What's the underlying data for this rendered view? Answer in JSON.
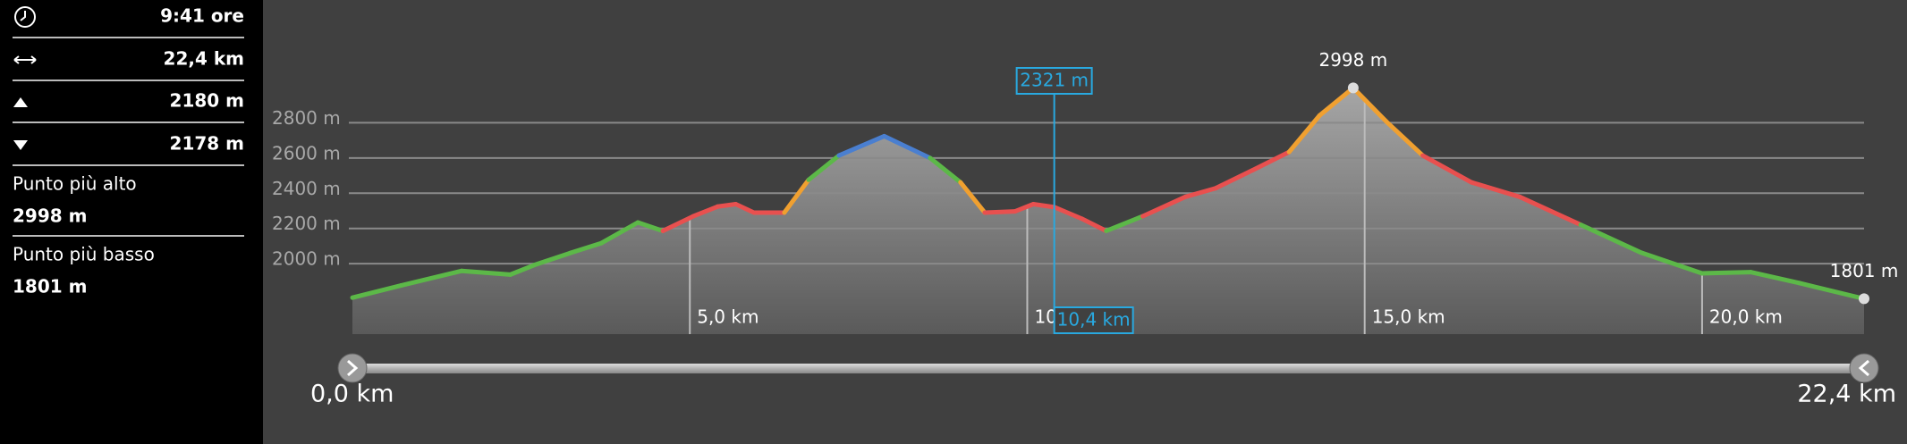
{
  "sidebar": {
    "duration": "9:41 ore",
    "distance": "22,4 km",
    "ascent": "2180 m",
    "descent": "2178 m",
    "highest_label": "Punto più alto",
    "highest_value": "2998 m",
    "lowest_label": "Punto più basso",
    "lowest_value": "1801 m"
  },
  "chart_data": {
    "type": "area",
    "x": [
      0,
      0.72,
      1.62,
      2.34,
      2.7,
      3.24,
      3.69,
      4.23,
      4.6,
      5.05,
      5.41,
      5.68,
      5.95,
      6.4,
      6.76,
      7.21,
      7.88,
      8.56,
      9.01,
      9.37,
      9.82,
      10.09,
      10.4,
      10.81,
      11.17,
      11.71,
      12.34,
      12.79,
      13.34,
      13.88,
      14.33,
      14.83,
      15.32,
      15.86,
      16.58,
      17.3,
      18.2,
      19.1,
      20.0,
      20.72,
      21.44,
      22.4
    ],
    "values": [
      1807,
      1876,
      1959,
      1938,
      1993,
      2062,
      2117,
      2234,
      2186,
      2269,
      2324,
      2338,
      2290,
      2290,
      2476,
      2614,
      2724,
      2600,
      2462,
      2290,
      2297,
      2338,
      2321,
      2255,
      2186,
      2269,
      2379,
      2428,
      2531,
      2634,
      2841,
      2998,
      2807,
      2614,
      2462,
      2379,
      2221,
      2062,
      1945,
      1952,
      1890,
      1801
    ],
    "segment_colors": [
      "#5cb848",
      "#5cb848",
      "#5cb848",
      "#5cb848",
      "#5cb848",
      "#5cb848",
      "#5cb848",
      "#5cb848",
      "#e8504f",
      "#e8504f",
      "#e8504f",
      "#e8504f",
      "#e8504f",
      "#f0a030",
      "#5cb848",
      "#4a7fd0",
      "#4a7fd0",
      "#5cb848",
      "#f0a030",
      "#e8504f",
      "#e8504f",
      "#e8504f",
      "#e8504f",
      "#e8504f",
      "#5cb848",
      "#e8504f",
      "#e8504f",
      "#e8504f",
      "#e8504f",
      "#f0a030",
      "#f0a030",
      "#f0a030",
      "#f0a030",
      "#e8504f",
      "#e8504f",
      "#e8504f",
      "#5cb848",
      "#5cb848",
      "#5cb848",
      "#5cb848",
      "#5cb848"
    ],
    "xlim": [
      0,
      22.4
    ],
    "ylim": [
      1600,
      3000
    ],
    "xticks": [
      {
        "value": 5,
        "label": "5,0 km"
      },
      {
        "value": 10,
        "label": "10,0 km"
      },
      {
        "value": 15,
        "label": "15,0 km"
      },
      {
        "value": 20,
        "label": "20,0 km"
      }
    ],
    "yticks": [
      {
        "value": 2000,
        "label": "2000 m"
      },
      {
        "value": 2200,
        "label": "2200 m"
      },
      {
        "value": 2400,
        "label": "2400 m"
      },
      {
        "value": 2600,
        "label": "2600 m"
      },
      {
        "value": 2800,
        "label": "2800 m"
      }
    ],
    "grid": true,
    "annotations": [
      {
        "text": "2998 m",
        "x": 14.83,
        "value": 2998
      },
      {
        "text": "1801 m",
        "x": 22.4,
        "value": 1801
      }
    ],
    "cursor": {
      "x": 10.4,
      "value": 2321,
      "x_label": "10,4 km",
      "value_label": "2321 m"
    }
  },
  "slider": {
    "start": "0,0 km",
    "end": "22,4 km"
  }
}
